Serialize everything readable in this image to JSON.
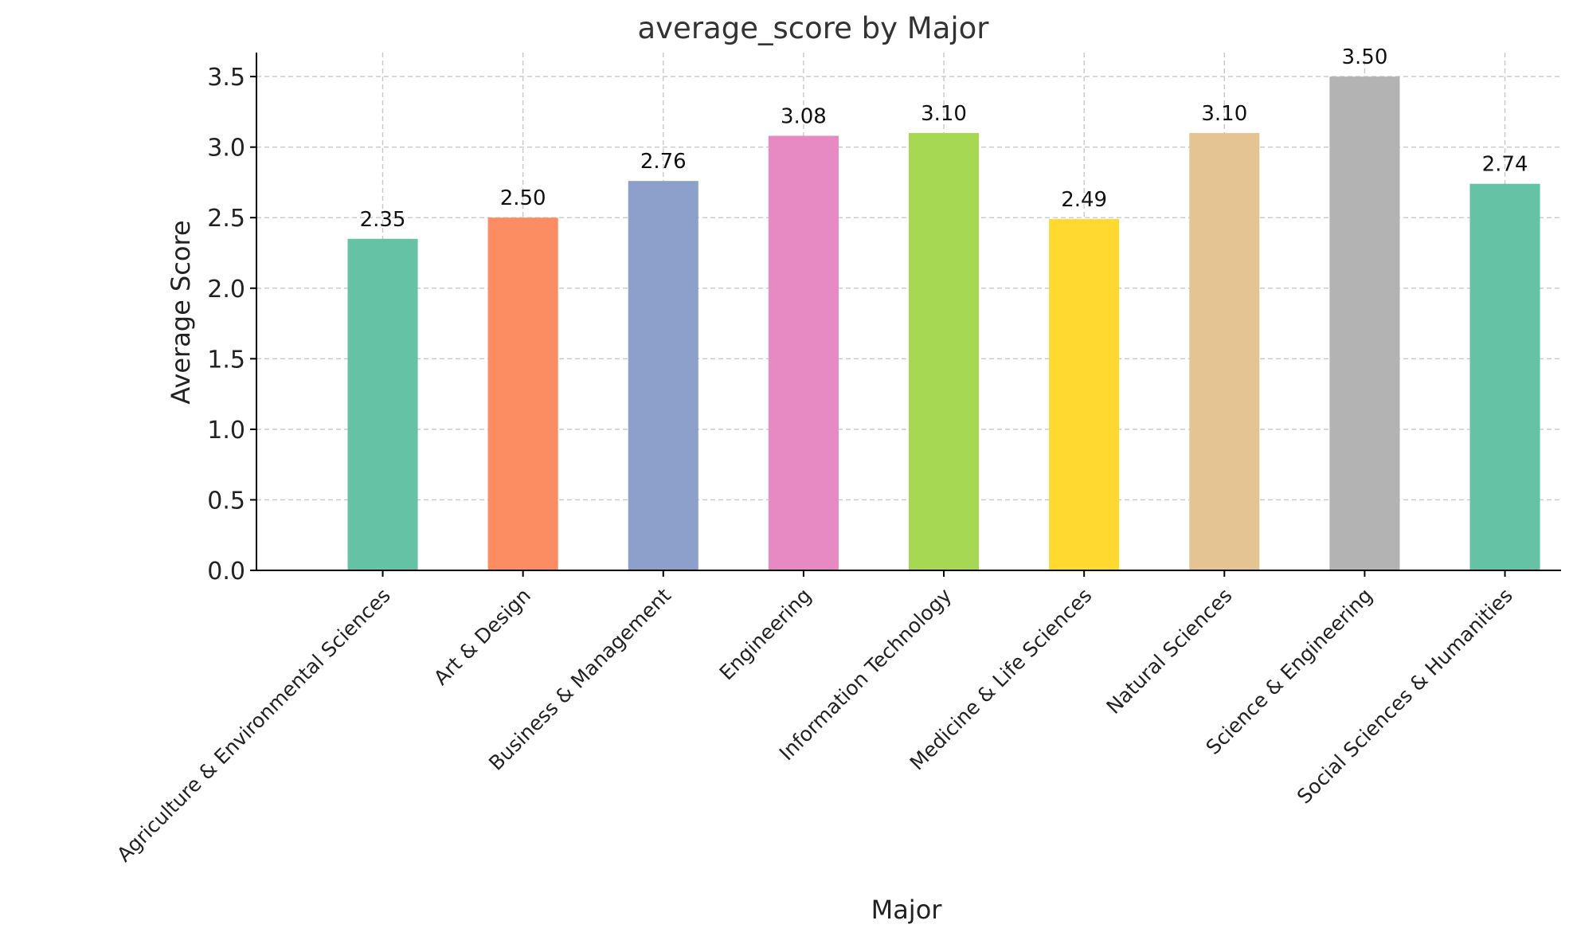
{
  "chart_data": {
    "type": "bar",
    "title": "average_score by Major",
    "xlabel": "Major",
    "ylabel": "Average Score",
    "ylim": [
      0,
      3.67
    ],
    "yticks": [
      "0.0",
      "0.5",
      "1.0",
      "1.5",
      "2.0",
      "2.5",
      "3.0",
      "3.5"
    ],
    "ytick_values": [
      0,
      0.5,
      1.0,
      1.5,
      2.0,
      2.5,
      3.0,
      3.5
    ],
    "grid": true,
    "categories": [
      "Agriculture & Environmental Sciences",
      "Art & Design",
      "Business & Management",
      "Engineering",
      "Information Technology",
      "Medicine & Life Sciences",
      "Natural Sciences",
      "Science & Engineering",
      "Social Sciences & Humanities"
    ],
    "values": [
      2.35,
      2.5,
      2.76,
      3.08,
      3.1,
      2.49,
      3.1,
      3.5,
      2.74
    ],
    "value_labels": [
      "2.35",
      "2.50",
      "2.76",
      "3.08",
      "3.10",
      "2.49",
      "3.10",
      "3.50",
      "2.74"
    ],
    "colors": [
      "#66c2a5",
      "#fc8d62",
      "#8da0cb",
      "#e78ac3",
      "#a6d854",
      "#ffd92f",
      "#e5c494",
      "#b3b3b3",
      "#66c2a5"
    ]
  }
}
